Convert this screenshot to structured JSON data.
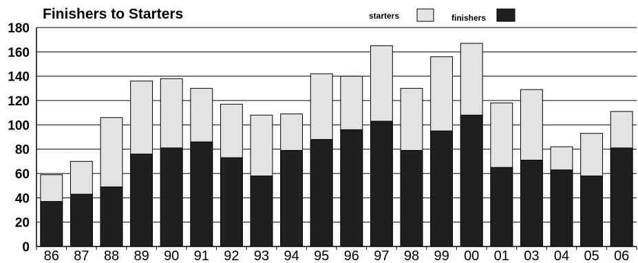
{
  "chart_data": {
    "type": "bar",
    "stacked": false,
    "overlapped": true,
    "title": "Finishers to Starters",
    "xlabel": "",
    "ylabel": "",
    "ylim": [
      0,
      180
    ],
    "yticks": [
      "0",
      "20",
      "40",
      "60",
      "80",
      "100",
      "120",
      "140",
      "160",
      "180"
    ],
    "grid": true,
    "legend_position": "top-right",
    "categories": [
      "86",
      "87",
      "88",
      "89",
      "90",
      "91",
      "92",
      "93",
      "94",
      "95",
      "96",
      "97",
      "98",
      "99",
      "00",
      "01",
      "03",
      "04",
      "05",
      "06"
    ],
    "series": [
      {
        "name": "starters",
        "color": "#e3e3e3",
        "values": [
          59,
          70,
          106,
          136,
          138,
          130,
          117,
          108,
          109,
          142,
          140,
          165,
          130,
          156,
          167,
          118,
          129,
          82,
          93,
          111
        ]
      },
      {
        "name": "finishers",
        "color": "#1f1f1f",
        "values": [
          37,
          43,
          49,
          76,
          81,
          86,
          73,
          58,
          79,
          88,
          96,
          103,
          79,
          95,
          108,
          65,
          71,
          63,
          58,
          81
        ]
      }
    ]
  }
}
